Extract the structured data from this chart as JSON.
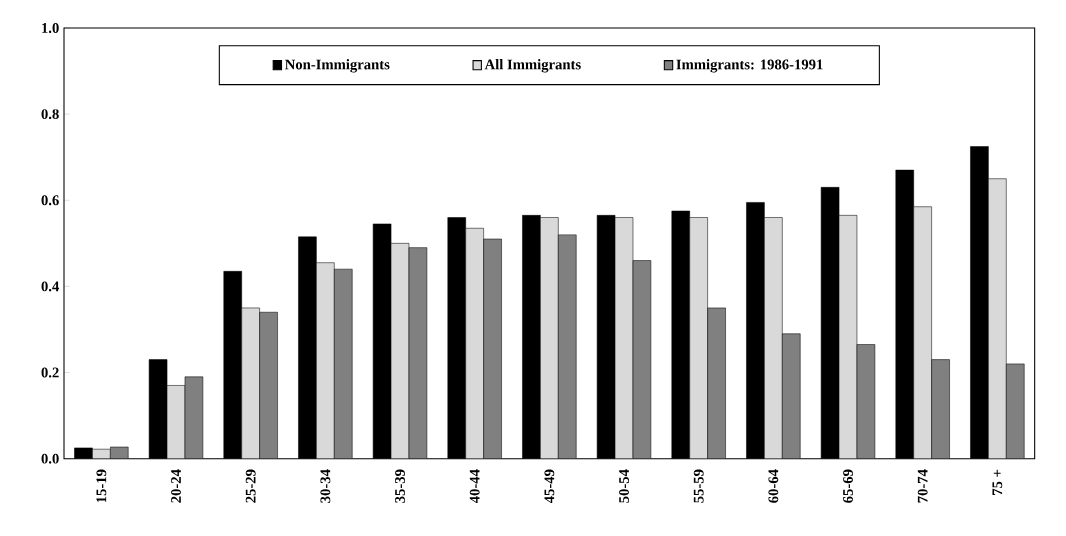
{
  "chart_data": {
    "type": "bar",
    "categories": [
      "15-19",
      "20-24",
      "25-29",
      "30-34",
      "35-39",
      "40-44",
      "45-49",
      "50-54",
      "55-59",
      "60-64",
      "65-69",
      "70-74",
      "75 +"
    ],
    "series": [
      {
        "name": "Non-Immigrants",
        "color": "#000000",
        "values": [
          0.025,
          0.23,
          0.435,
          0.515,
          0.545,
          0.56,
          0.565,
          0.565,
          0.575,
          0.595,
          0.63,
          0.67,
          0.725
        ]
      },
      {
        "name": "All Immigrants",
        "color": "#d9d9d9",
        "values": [
          0.022,
          0.17,
          0.35,
          0.455,
          0.5,
          0.535,
          0.56,
          0.56,
          0.56,
          0.56,
          0.565,
          0.585,
          0.65
        ]
      },
      {
        "name": "Immigrants: 1986-1991",
        "color": "#808080",
        "values": [
          0.027,
          0.19,
          0.34,
          0.44,
          0.49,
          0.51,
          0.52,
          0.46,
          0.35,
          0.29,
          0.265,
          0.23,
          0.22
        ]
      }
    ],
    "ylim": [
      0,
      1.0
    ],
    "yticks": [
      {
        "value": 0,
        "label": "0.0"
      },
      {
        "value": 0.2,
        "label": "0.2"
      },
      {
        "value": 0.4,
        "label": "0.4"
      },
      {
        "value": 0.6,
        "label": "0.6"
      },
      {
        "value": 0.8,
        "label": "0.8"
      },
      {
        "value": 1.0,
        "label": "1.0"
      }
    ],
    "legend": "top",
    "grid": false
  }
}
